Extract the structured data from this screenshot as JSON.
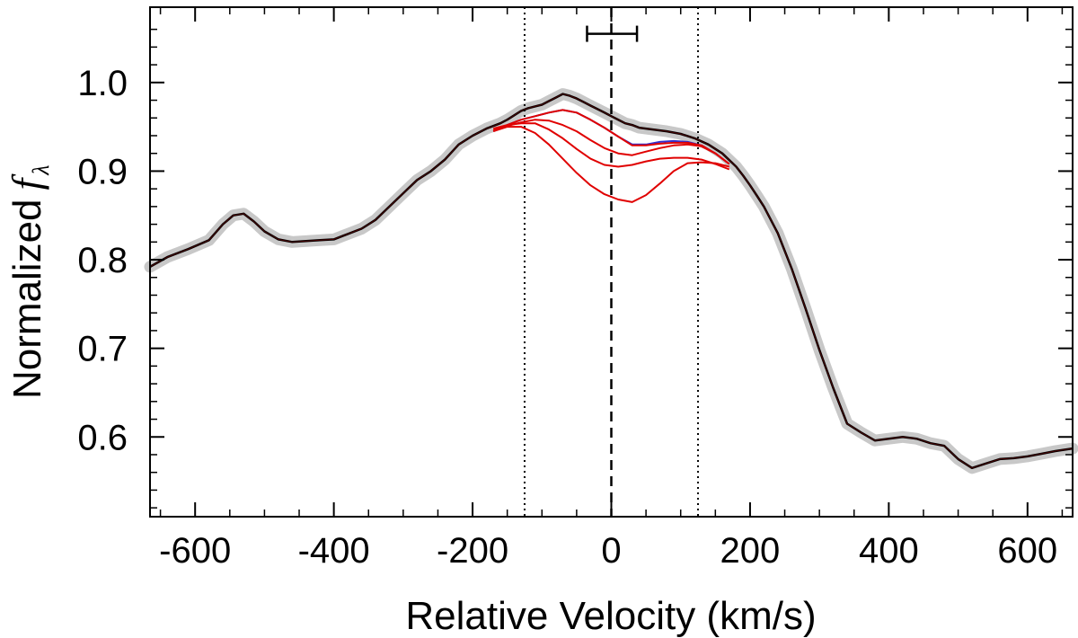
{
  "chart_data": {
    "type": "line",
    "xlabel": "Relative Velocity (km/s)",
    "ylabel": "Normalized",
    "ylabel_symbol": "f",
    "ylabel_subscript": "λ",
    "xlim": [
      -665,
      665
    ],
    "ylim": [
      0.51,
      1.085
    ],
    "xticks": [
      -600,
      -400,
      -200,
      0,
      200,
      400,
      600
    ],
    "xtick_labels": [
      "-600",
      "-400",
      "-200",
      "0",
      "200",
      "400",
      "600"
    ],
    "yticks": [
      0.6,
      0.7,
      0.8,
      0.9,
      1.0
    ],
    "ytick_labels": [
      "0.6",
      "0.7",
      "0.8",
      "0.9",
      "1.0"
    ],
    "vlines": [
      {
        "name": "dotted-left",
        "x": -125,
        "style": "dotted"
      },
      {
        "name": "dashed-center",
        "x": 0,
        "style": "dashed"
      },
      {
        "name": "dotted-right",
        "x": 125,
        "style": "dotted"
      }
    ],
    "errorbar": {
      "center": 0,
      "xmin": -35,
      "xmax": 37,
      "y": 1.055
    },
    "colors": {
      "observed": "#000000",
      "band": "#c8c8c8",
      "model": "#e00000",
      "blue": "#3030d0"
    },
    "series": [
      {
        "name": "observed",
        "x": [
          -665,
          -640,
          -610,
          -580,
          -560,
          -545,
          -530,
          -515,
          -500,
          -480,
          -460,
          -440,
          -420,
          -400,
          -380,
          -360,
          -340,
          -320,
          -300,
          -280,
          -260,
          -240,
          -220,
          -200,
          -180,
          -160,
          -150,
          -140,
          -130,
          -120,
          -110,
          -100,
          -90,
          -80,
          -70,
          -60,
          -50,
          -40,
          -30,
          -20,
          -10,
          0,
          10,
          20,
          30,
          40,
          60,
          80,
          100,
          120,
          140,
          160,
          180,
          190,
          200,
          210,
          220,
          240,
          260,
          280,
          300,
          320,
          340,
          360,
          380,
          400,
          420,
          440,
          460,
          480,
          500,
          520,
          540,
          560,
          580,
          600,
          620,
          640,
          665
        ],
        "y": [
          0.792,
          0.803,
          0.812,
          0.822,
          0.84,
          0.85,
          0.852,
          0.843,
          0.832,
          0.823,
          0.82,
          0.821,
          0.822,
          0.823,
          0.829,
          0.835,
          0.845,
          0.86,
          0.875,
          0.89,
          0.9,
          0.913,
          0.93,
          0.94,
          0.948,
          0.954,
          0.958,
          0.963,
          0.968,
          0.971,
          0.973,
          0.975,
          0.979,
          0.983,
          0.987,
          0.985,
          0.982,
          0.978,
          0.974,
          0.97,
          0.966,
          0.962,
          0.958,
          0.954,
          0.952,
          0.949,
          0.947,
          0.945,
          0.942,
          0.937,
          0.93,
          0.92,
          0.905,
          0.895,
          0.884,
          0.872,
          0.86,
          0.83,
          0.79,
          0.745,
          0.698,
          0.655,
          0.615,
          0.605,
          0.596,
          0.598,
          0.6,
          0.598,
          0.593,
          0.59,
          0.575,
          0.565,
          0.57,
          0.575,
          0.576,
          0.578,
          0.581,
          0.584,
          0.587
        ]
      },
      {
        "name": "model-1",
        "x": [
          -170,
          -150,
          -130,
          -110,
          -90,
          -70,
          -50,
          -30,
          -10,
          10,
          30,
          50,
          70,
          90,
          110,
          130,
          150,
          170
        ],
        "y": [
          0.945,
          0.952,
          0.958,
          0.962,
          0.966,
          0.969,
          0.966,
          0.958,
          0.949,
          0.939,
          0.93,
          0.93,
          0.933,
          0.934,
          0.933,
          0.929,
          0.92,
          0.908
        ]
      },
      {
        "name": "model-2",
        "x": [
          -170,
          -150,
          -130,
          -110,
          -90,
          -70,
          -50,
          -30,
          -10,
          10,
          30,
          50,
          70,
          90,
          110,
          130,
          150,
          170
        ],
        "y": [
          0.945,
          0.952,
          0.958,
          0.962,
          0.966,
          0.969,
          0.966,
          0.958,
          0.949,
          0.939,
          0.929,
          0.929,
          0.931,
          0.932,
          0.932,
          0.929,
          0.92,
          0.908
        ]
      },
      {
        "name": "model-3",
        "x": [
          -170,
          -150,
          -130,
          -110,
          -90,
          -70,
          -50,
          -30,
          -10,
          10,
          30,
          50,
          70,
          90,
          110,
          130,
          150,
          170
        ],
        "y": [
          0.946,
          0.951,
          0.955,
          0.958,
          0.957,
          0.952,
          0.945,
          0.935,
          0.926,
          0.92,
          0.918,
          0.922,
          0.926,
          0.929,
          0.93,
          0.928,
          0.92,
          0.908
        ]
      },
      {
        "name": "model-4",
        "x": [
          -170,
          -150,
          -130,
          -110,
          -90,
          -70,
          -50,
          -30,
          -10,
          10,
          30,
          50,
          70,
          90,
          110,
          130,
          150,
          170
        ],
        "y": [
          0.948,
          0.952,
          0.954,
          0.954,
          0.947,
          0.937,
          0.925,
          0.914,
          0.907,
          0.905,
          0.907,
          0.911,
          0.914,
          0.915,
          0.915,
          0.913,
          0.908,
          0.902
        ]
      },
      {
        "name": "model-5",
        "x": [
          -170,
          -150,
          -130,
          -110,
          -90,
          -70,
          -50,
          -30,
          -10,
          10,
          30,
          50,
          70,
          90,
          110,
          130,
          150,
          170
        ],
        "y": [
          0.945,
          0.95,
          0.95,
          0.943,
          0.93,
          0.914,
          0.898,
          0.884,
          0.874,
          0.868,
          0.865,
          0.873,
          0.886,
          0.9,
          0.909,
          0.91,
          0.909,
          0.905
        ]
      }
    ]
  }
}
